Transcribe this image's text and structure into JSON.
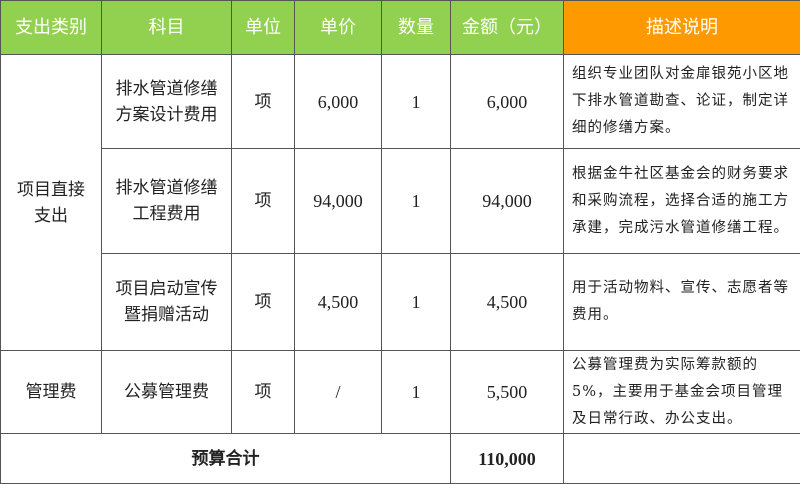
{
  "colors": {
    "header_green": "#92d050",
    "header_orange": "#ff9900"
  },
  "headers": [
    "支出类别",
    "科目",
    "单位",
    "单价",
    "数量",
    "金额（元）",
    "描述说明"
  ],
  "groups": [
    {
      "category": "项目直接支出",
      "rows": [
        {
          "item": "排水管道修缮方案设计费用",
          "unit": "项",
          "price": "6,000",
          "qty": "1",
          "amount": "6,000",
          "desc": "组织专业团队对金扉银苑小区地下排水管道勘查、论证，制定详细的修缮方案。"
        },
        {
          "item": "排水管道修缮工程费用",
          "unit": "项",
          "price": "94,000",
          "qty": "1",
          "amount": "94,000",
          "desc": "根据金牛社区基金会的财务要求和采购流程，选择合适的施工方承建，完成污水管道修缮工程。"
        },
        {
          "item": "项目启动宣传暨捐赠活动",
          "unit": "项",
          "price": "4,500",
          "qty": "1",
          "amount": "4,500",
          "desc": "用于活动物料、宣传、志愿者等费用。"
        }
      ]
    },
    {
      "category": "管理费",
      "rows": [
        {
          "item": "公募管理费",
          "unit": "项",
          "price": "/",
          "qty": "1",
          "amount": "5,500",
          "desc": "公募管理费为实际筹款额的5%，主要用于基金会项目管理及日常行政、办公支出。"
        }
      ]
    }
  ],
  "total": {
    "label": "预算合计",
    "amount": "110,000"
  }
}
